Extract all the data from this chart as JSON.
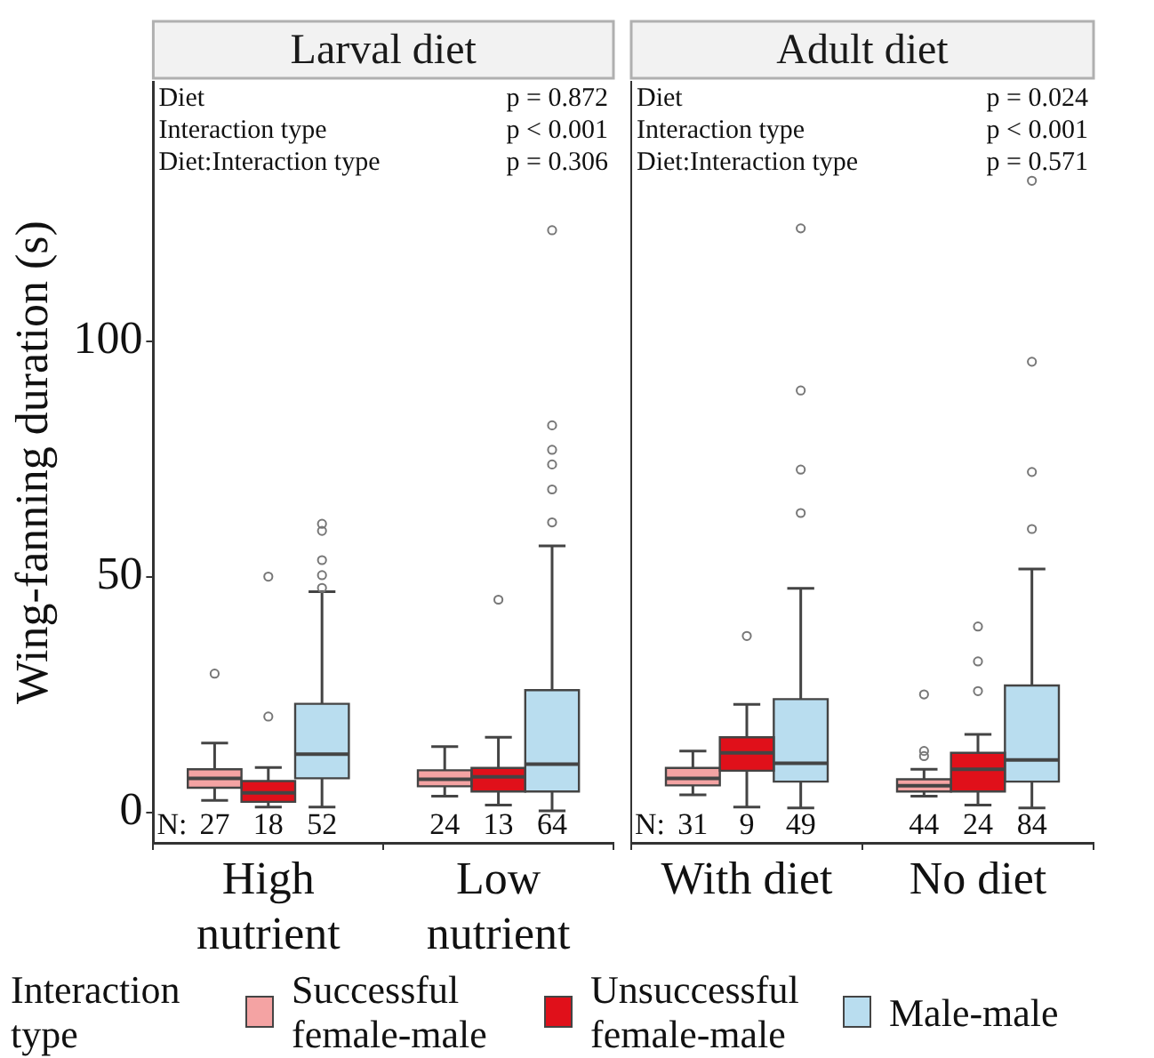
{
  "chart_data": [
    {
      "type": "box",
      "title": "Larval diet",
      "ylabel": "Wing-fanning duration (s)",
      "legend_title": "Interaction type",
      "legend": "bottom",
      "categories": [
        "High nutrient",
        "Low nutrient"
      ],
      "ylim": [
        -6.5,
        155
      ],
      "yticks": [
        0,
        50,
        100
      ],
      "grid": false,
      "annotations": [
        "Diet",
        "p = 0.872",
        "Interaction type",
        "p < 0.001",
        "Diet:Interaction type",
        "p = 0.306",
        "N:",
        "27",
        "18",
        "52",
        "24",
        "13",
        "64"
      ],
      "series": [
        {
          "name": "Successful female-male",
          "color": "#f4a3a3",
          "boxes": [
            {
              "low": 2.5,
              "q1": 5.2,
              "median": 7.2,
              "q3": 9.1,
              "high": 14.7,
              "outliers": [
                29.4
              ]
            },
            {
              "low": 3.4,
              "q1": 5.5,
              "median": 7.0,
              "q3": 8.9,
              "high": 13.9
            }
          ]
        },
        {
          "name": "Unsuccessful female-male",
          "color": "#e0101a",
          "boxes": [
            {
              "low": 1.1,
              "q1": 2.2,
              "median": 4.1,
              "q3": 6.6,
              "high": 9.5,
              "outliers": [
                20.3,
                50
              ]
            },
            {
              "low": 1.5,
              "q1": 4.4,
              "median": 7.5,
              "q3": 9.4,
              "high": 15.9,
              "outliers": [
                45.1
              ]
            }
          ]
        },
        {
          "name": "Male-male",
          "color": "#b9ddef",
          "boxes": [
            {
              "low": 1.1,
              "q1": 7.2,
              "median": 12.3,
              "q3": 23,
              "high": 46.8,
              "outliers": [
                47.6,
                50.3,
                53.5,
                59.7,
                61.2
              ]
            },
            {
              "low": 0.3,
              "q1": 4.4,
              "median": 10.2,
              "q3": 25.9,
              "high": 56.5,
              "outliers": [
                61.5,
                68.5,
                73.8,
                76.9,
                82.1,
                123.5
              ]
            }
          ]
        }
      ]
    },
    {
      "type": "box",
      "title": "Adult diet",
      "categories": [
        "With diet",
        "No diet"
      ],
      "ylim": [
        -6.5,
        155
      ],
      "yticks": [
        0,
        50,
        100
      ],
      "tick_labels": "x",
      "grid": false,
      "annotations": [
        "Diet",
        "p = 0.024",
        "Interaction type",
        "p < 0.001",
        "Diet:Interaction type",
        "p = 0.571",
        "N:",
        "31",
        "9",
        "49",
        "44",
        "24",
        "84"
      ],
      "series": [
        {
          "color": "#f4a3a3",
          "boxes": [
            {
              "low": 3.7,
              "q1": 5.7,
              "median": 7.2,
              "q3": 9.4,
              "high": 13.0
            },
            {
              "low": 3.4,
              "q1": 4.4,
              "median": 5.6,
              "q3": 7.0,
              "high": 9.1,
              "outliers": [
                11.9,
                13.0,
                25.0
              ]
            }
          ]
        },
        {
          "color": "#e0101a",
          "boxes": [
            {
              "low": 1.1,
              "q1": 8.8,
              "median": 12.6,
              "q3": 15.9,
              "high": 22.9,
              "outliers": [
                37.4
              ]
            },
            {
              "low": 1.5,
              "q1": 4.4,
              "median": 9.1,
              "q3": 12.6,
              "high": 16.5,
              "outliers": [
                25.7,
                32.0,
                39.4
              ]
            }
          ]
        },
        {
          "color": "#b9ddef",
          "boxes": [
            {
              "low": 0.9,
              "q1": 6.5,
              "median": 10.4,
              "q3": 24.0,
              "high": 47.5,
              "outliers": [
                63.5,
                72.7,
                89.5,
                123.9
              ]
            },
            {
              "low": 0.9,
              "q1": 6.5,
              "median": 11.1,
              "q3": 26.9,
              "high": 51.6,
              "outliers": [
                60.1,
                72.2,
                95.6,
                134
              ]
            }
          ]
        }
      ]
    }
  ]
}
